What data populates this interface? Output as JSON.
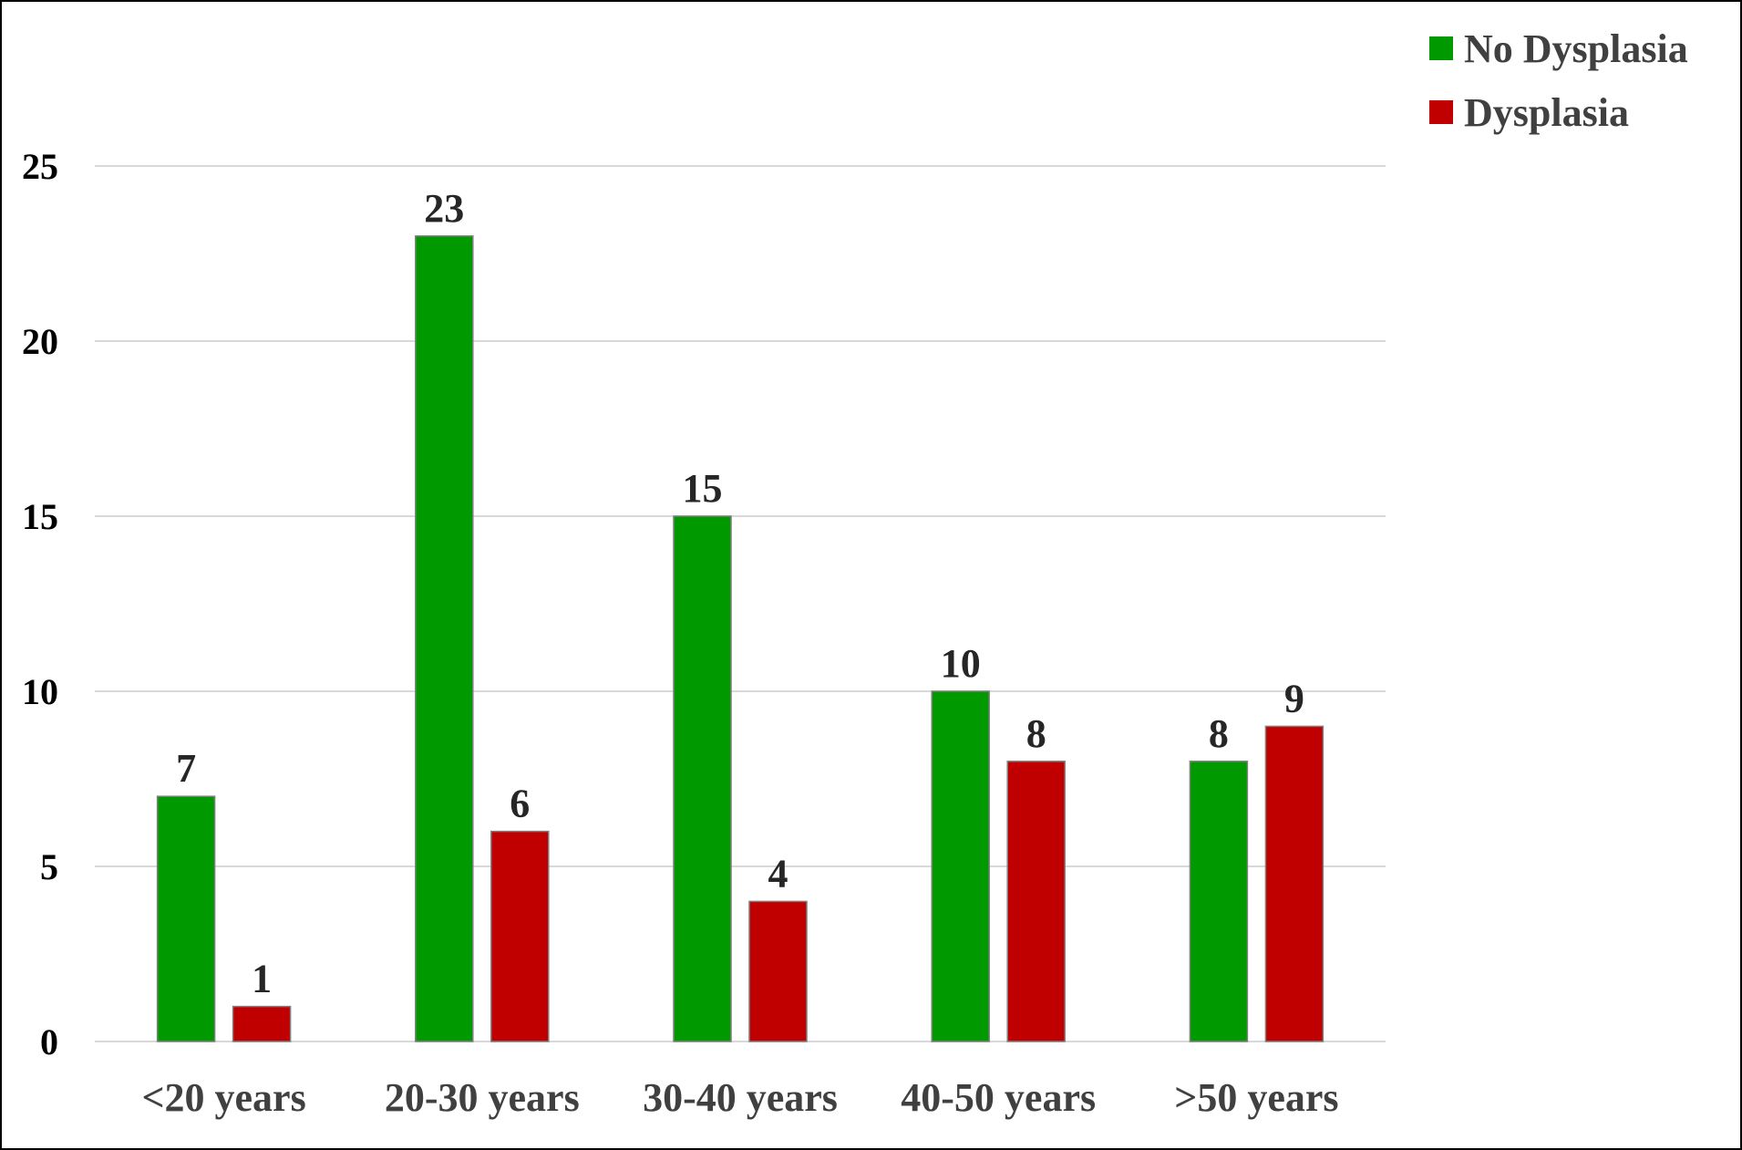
{
  "chart_data": {
    "type": "bar",
    "categories": [
      "<20 years",
      "20-30 years",
      "30-40 years",
      "40-50 years",
      ">50 years"
    ],
    "series": [
      {
        "name": "No Dysplasia",
        "values": [
          7,
          23,
          15,
          10,
          8
        ],
        "color": "#009900"
      },
      {
        "name": "Dysplasia",
        "values": [
          1,
          6,
          4,
          8,
          9
        ],
        "color": "#C00000"
      }
    ],
    "yticks": [
      "0",
      "5",
      "10",
      "15",
      "20",
      "25"
    ],
    "ylim": [
      0,
      25
    ],
    "grid": true,
    "legend_position": "top-right"
  }
}
